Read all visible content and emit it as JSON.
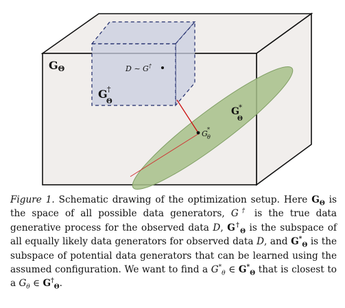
{
  "figure": {
    "labels": {
      "g_theta": "G",
      "g_theta_sub": "Θ",
      "g_dagger": "G",
      "g_dagger_sup": "†",
      "g_dagger_sub": "Θ",
      "g_star": "G",
      "g_star_sup": "*",
      "g_star_sub": "Θ",
      "data_point": "D ∼ G",
      "data_point_sup": "†",
      "g_theta_star_point": "G",
      "g_theta_star_point_sup": "*",
      "g_theta_star_point_sub": "θ"
    },
    "colors": {
      "box_fill": "#f1eeec",
      "box_stroke": "#111111",
      "cube_fill": "#c8cde0",
      "cube_stroke": "#1e2a6a",
      "ellipse_fill": "#a7c08a",
      "ellipse_stroke": "#7f9e63",
      "connector": "#cc1111"
    }
  },
  "caption": {
    "fig_label": "Figure 1.",
    "s1": " Schematic drawing of the optimization setup. Here ",
    "g_theta": "G",
    "g_theta_sub": "Θ",
    "s2": " is the space of all possible data generators, ",
    "g_dagger": "G",
    "g_dagger_sup": "†",
    "s3": " is the true data generative process for the observed data ",
    "d1": "D",
    "s4": ", ",
    "g_dagger_space": "G",
    "g_dagger_space_sup": "†",
    "g_dagger_space_sub": "Θ",
    "s5": " is the subspace of all equally likely data generators for observed data ",
    "d2": "D",
    "s6": ", and ",
    "g_star_space": "G",
    "g_star_space_sup": "*",
    "g_star_space_sub": "Θ",
    "s7": " is the subspace of potential data generators that can be learned using the assumed configuration. We want to find a ",
    "g_theta_star": "G",
    "g_theta_star_sup": "*",
    "g_theta_star_sub": "θ",
    "s8": " ∈ ",
    "g_star_space2": "G",
    "g_star_space2_sup": "*",
    "g_star_space2_sub": "Θ",
    "s9": " that is closest to a ",
    "g_theta_pt": "G",
    "g_theta_pt_sub": "θ",
    "s10": " ∈ ",
    "g_dagger_space2": "G",
    "g_dagger_space2_sup": "†",
    "g_dagger_space2_sub": "Θ",
    "s11": "."
  }
}
